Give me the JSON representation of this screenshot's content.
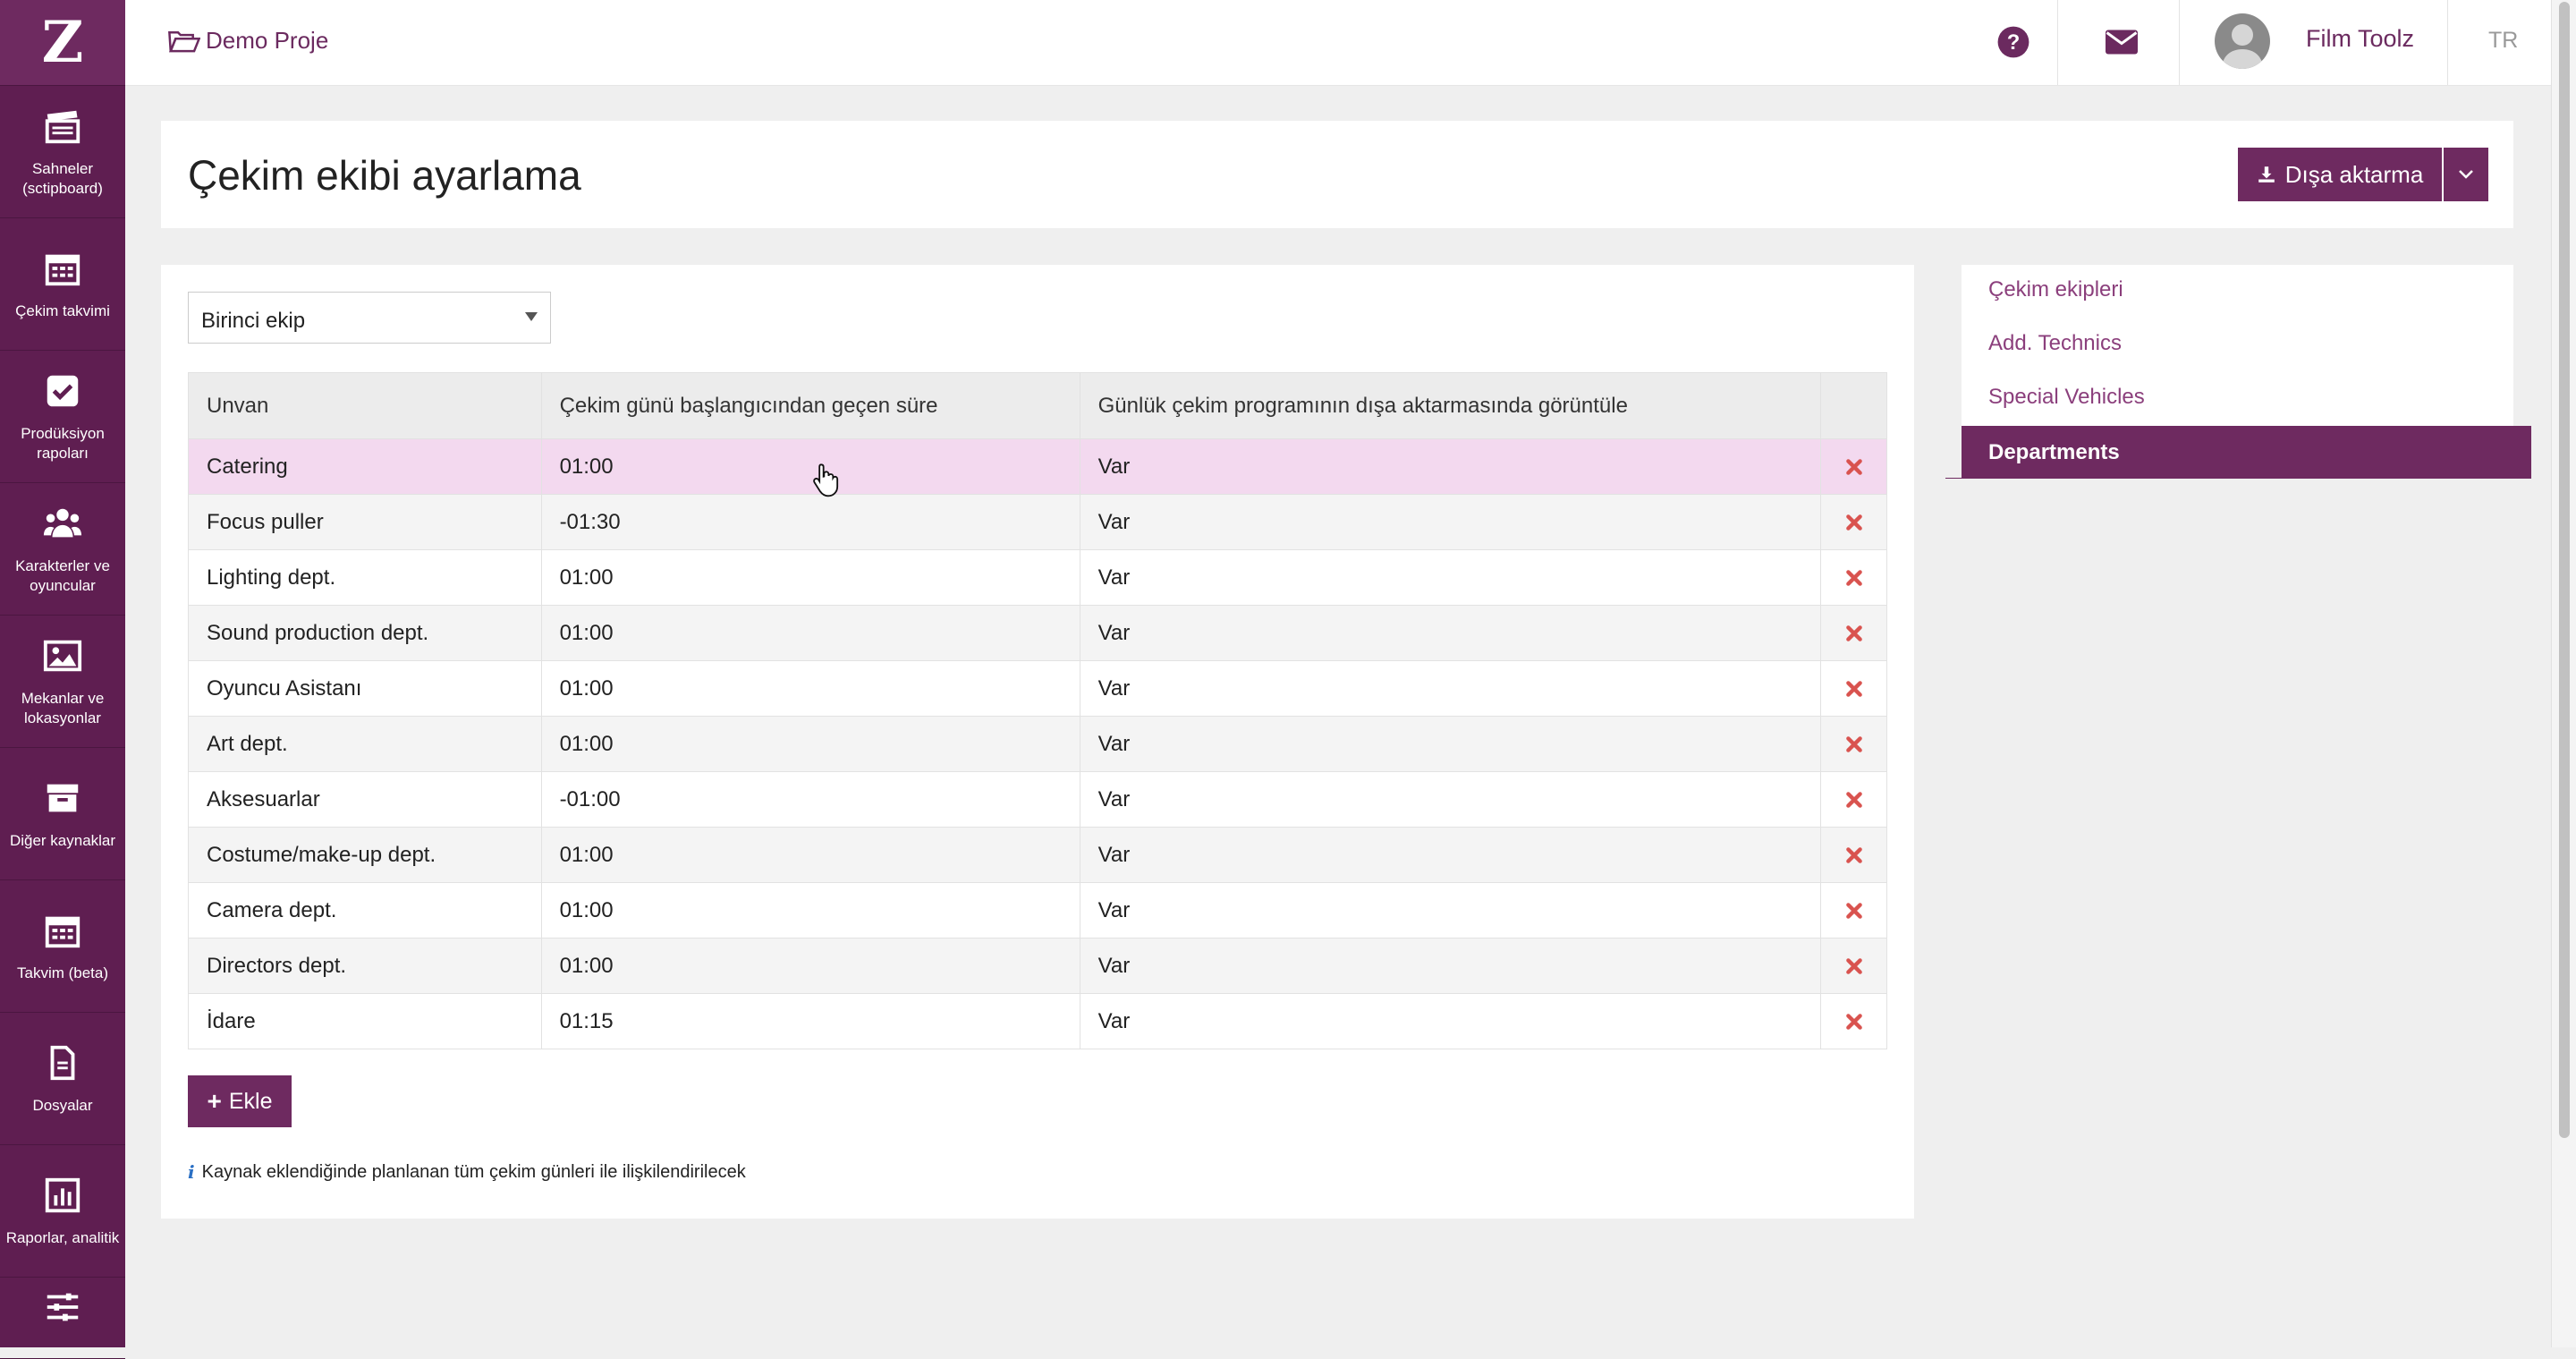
{
  "sidebar": {
    "logo": "Z",
    "items": [
      {
        "label": "Sahneler\n(sctipboard)",
        "icon": "clapperboard-icon"
      },
      {
        "label": "Çekim takvimi",
        "icon": "calendar-icon"
      },
      {
        "label": "Prodüksiyon\nrapoları",
        "icon": "checkbox-icon"
      },
      {
        "label": "Karakterler ve\noyuncular",
        "icon": "users-icon"
      },
      {
        "label": "Mekanlar ve\nlokasyonlar",
        "icon": "image-icon"
      },
      {
        "label": "Diğer kaynaklar",
        "icon": "archive-icon"
      },
      {
        "label": "Takvim (beta)",
        "icon": "calendar-icon"
      },
      {
        "label": "Dosyalar",
        "icon": "file-icon"
      },
      {
        "label": "Raporlar, analitik",
        "icon": "bar-chart-icon"
      },
      {
        "label": "",
        "icon": "sliders-icon"
      }
    ]
  },
  "topbar": {
    "project": "Demo Proje",
    "user": "Film Toolz",
    "lang": "TR"
  },
  "header": {
    "title": "Çekim ekibi ayarlama",
    "export_label": "Dışa aktarma"
  },
  "crew_select": {
    "value": "Birinci ekip"
  },
  "table": {
    "headers": [
      "Unvan",
      "Çekim günü başlangıcından geçen süre",
      "Günlük çekim programının dışa aktarmasında görüntüle",
      ""
    ],
    "rows": [
      {
        "title": "Catering",
        "offset": "01:00",
        "show": "Var"
      },
      {
        "title": "Focus puller",
        "offset": "-01:30",
        "show": "Var"
      },
      {
        "title": "Lighting dept.",
        "offset": "01:00",
        "show": "Var"
      },
      {
        "title": "Sound production dept.",
        "offset": "01:00",
        "show": "Var"
      },
      {
        "title": "Oyuncu Asistanı",
        "offset": "01:00",
        "show": "Var"
      },
      {
        "title": "Art dept.",
        "offset": "01:00",
        "show": "Var"
      },
      {
        "title": "Aksesuarlar",
        "offset": "-01:00",
        "show": "Var"
      },
      {
        "title": "Costume/make-up dept.",
        "offset": "01:00",
        "show": "Var"
      },
      {
        "title": "Camera dept.",
        "offset": "01:00",
        "show": "Var"
      },
      {
        "title": "Directors dept.",
        "offset": "01:00",
        "show": "Var"
      },
      {
        "title": "İdare",
        "offset": "01:15",
        "show": "Var"
      }
    ]
  },
  "add_button": {
    "label": "Ekle"
  },
  "info_text": "Kaynak eklendiğinde planlanan tüm çekim günleri ile ilişkilendirilecek",
  "right_nav": {
    "items": [
      "Çekim ekipleri",
      "Add. Technics",
      "Special Vehicles"
    ],
    "active": "Departments"
  },
  "colors": {
    "brand": "#6e2a60",
    "highlight_row": "#f3d9ef",
    "delete": "#d9534f"
  }
}
